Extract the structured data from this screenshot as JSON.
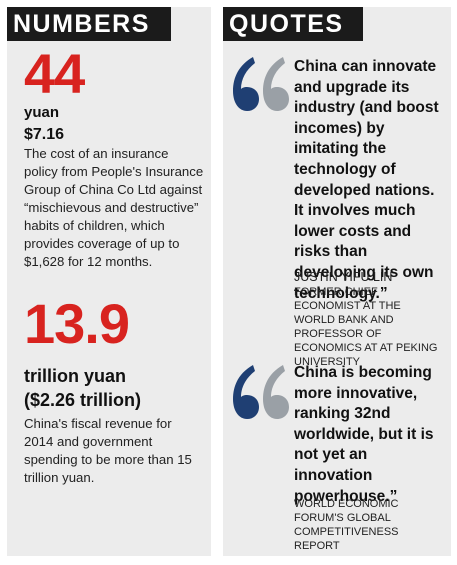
{
  "numbers": {
    "header": "NUMBERS",
    "items": [
      {
        "value": "44",
        "unit": "yuan",
        "subunit": "$7.16",
        "description": "The cost of an insurance policy from People's Insurance Group of China Co Ltd against “mischievous and destructive” habits of children, which provides coverage of up to $1,628 for 12 months."
      },
      {
        "value": "13.9",
        "unit": "trillion yuan",
        "subunit": "($2.26 trillion)",
        "description": "China's fiscal revenue for 2014 and government spending to be more than 15 trillion yuan."
      }
    ]
  },
  "quotes": {
    "header": "QUOTES",
    "items": [
      {
        "text": "China can innovate and upgrade its industry (and boost incomes) by imitating the technology of developed nations. It involves much lower costs and risks than developing its own technology.”",
        "attribution_name": "JUSTIN YIFU LIN",
        "attribution_title": "FORMER CHIEF ECONOMIST AT THE WORLD BANK AND PROFESSOR OF ECONOMICS AT AT PEKING UNIVERSITY"
      },
      {
        "text": "China is becoming more innovative, ranking 32nd worldwide, but it is not yet an innovation powerhouse.”",
        "attribution_name": "",
        "attribution_title": "WORLD ECONOMIC FORUM'S GLOBAL COMPETITIVENESS REPORT"
      }
    ]
  },
  "colors": {
    "accent_red": "#d8231f",
    "quote_blue": "#1f3f73",
    "quote_gray": "#9aa0a6",
    "header_bg": "#1b1b1b",
    "panel_bg": "#ececec"
  }
}
